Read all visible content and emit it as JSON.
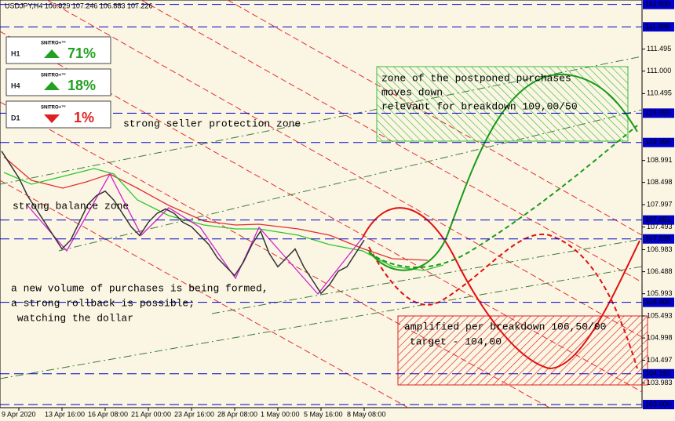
{
  "chart_data": {
    "type": "line",
    "title": "USDJPY,H4 106.929 107.246 106.883 107.226",
    "categories": [
      null,
      null,
      "9 Apr 2020",
      null,
      null,
      null,
      null,
      "13 Apr 16:00",
      null,
      null,
      null,
      null,
      "16 Apr 08:00",
      null,
      null,
      null,
      null,
      "21 Apr 00:00",
      null,
      null,
      null,
      null,
      "23 Apr 16:00",
      null,
      null,
      null,
      null,
      "28 Apr 08:00",
      null,
      null,
      null,
      null,
      "1 May 00:00",
      null,
      null,
      null,
      null,
      "5 May 16:00",
      null,
      null,
      null,
      null,
      "8 May 08:00"
    ],
    "series": [
      {
        "name": "USDJPY",
        "color": "#333333",
        "values": [
          109.2,
          108.9,
          108.6,
          108.2,
          107.9,
          107.6,
          107.3,
          107.0,
          107.2,
          107.6,
          108.0,
          108.2,
          108.3,
          108.1,
          107.8,
          107.5,
          107.3,
          107.6,
          107.8,
          107.9,
          107.8,
          107.6,
          107.5,
          107.3,
          107.1,
          106.8,
          106.6,
          106.4,
          106.7,
          107.1,
          107.4,
          106.9,
          106.6,
          106.8,
          107.0,
          106.6,
          106.3,
          106.0,
          106.2,
          106.5,
          106.6,
          106.9,
          107.2
        ]
      }
    ],
    "ylim": [
      103.43,
      112.6
    ],
    "yticks": [
      111.495,
      {
        "value": 111.0,
        "label": "111.000"
      },
      110.495,
      108.991,
      108.498,
      107.997,
      107.493,
      106.983,
      106.488,
      105.993,
      105.493,
      104.998,
      104.497,
      103.983
    ],
    "levels": [
      {
        "value": 112.5,
        "label": "112.500"
      },
      111.996,
      110.055,
      109.395,
      107.651,
      107.226,
      {
        "value": 105.8,
        "label": "105.800"
      },
      104.192,
      {
        "value": 103.5,
        "label": "103.500"
      }
    ],
    "level_color": "#0000c8",
    "signals": [
      {
        "name": "SNITRO+™",
        "timeframe": "H1",
        "value": 71,
        "value_label": "71%",
        "color": "#22a022"
      },
      {
        "name": "SNITRO+™",
        "timeframe": "H4",
        "value": 18,
        "value_label": "18%",
        "color": "#22a022"
      },
      {
        "name": "SNITRO+™",
        "timeframe": "D1",
        "value": 1,
        "value_label": "1%",
        "color": "#e02020"
      }
    ],
    "annotations": {
      "buy_zone": [
        "zone of the postponed purchases",
        "moves down",
        "relevant for breakdown 109,00/50"
      ],
      "seller_zone": "strong seller protection zone",
      "balance_zone": "strong balance zone",
      "volume_note": [
        "a new volume of purchases is being formed,",
        "a strong rollback is possible;",
        " watching the dollar"
      ],
      "sell_zone": [
        "amplified per breakdown 106,50/00",
        "target - 104,00"
      ]
    }
  }
}
